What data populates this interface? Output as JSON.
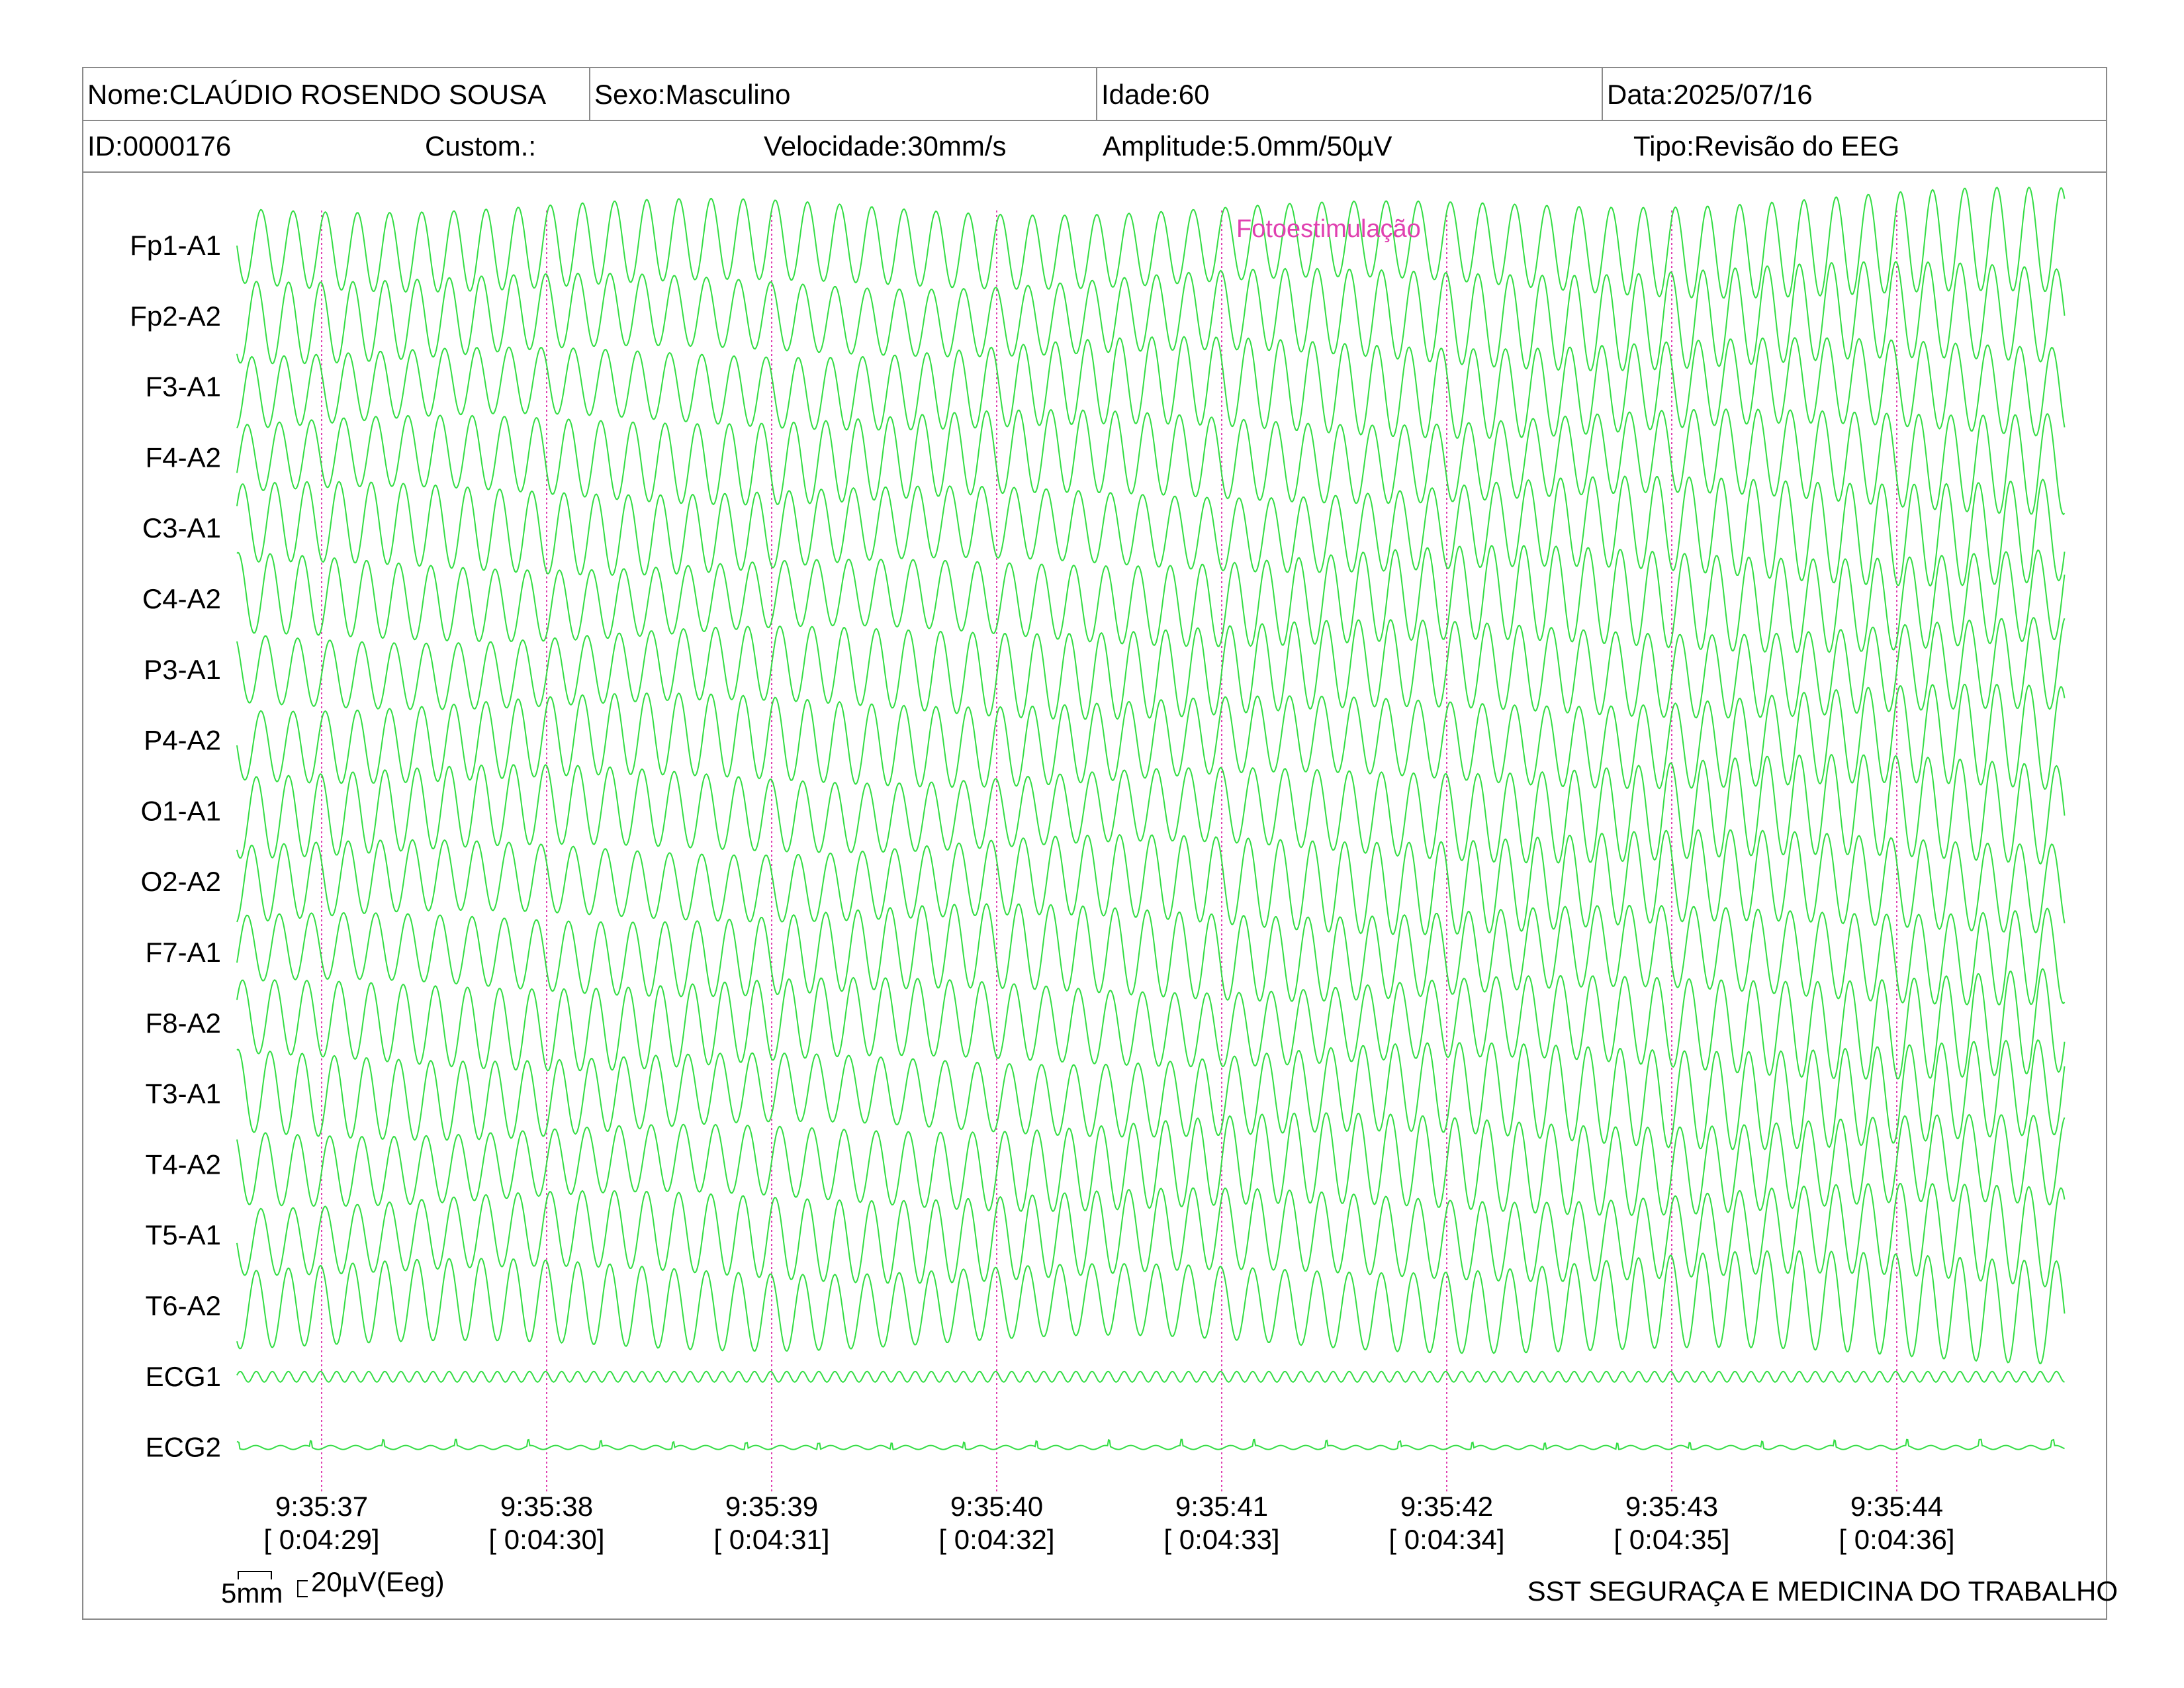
{
  "header": {
    "name": "Nome:CLAÚDIO ROSENDO SOUSA",
    "sex": "Sexo:Masculino",
    "age": "Idade:60",
    "date": "Data:2025/07/16",
    "id": "ID:0000176",
    "custom": "Custom.:",
    "speed": "Velocidade:30mm/s",
    "amplitude": "Amplitude:5.0mm/50µV",
    "type": "Tipo:Revisão do EEG"
  },
  "calibration": {
    "time_label": "5mm",
    "amp_label": "20µV(Eeg)"
  },
  "footer": "SST SEGURAÇA E MEDICINA DO TRABALHO",
  "colors": {
    "trace": "#33dd44",
    "marker": "#e040b0",
    "border": "#8a8a8a"
  },
  "chart_data": {
    "type": "line",
    "title": "",
    "annotation": {
      "text": "Fotoestimulação",
      "time": "9:35:41"
    },
    "x_ticks": [
      {
        "time": "9:35:37",
        "elapsed": "[ 0:04:29]"
      },
      {
        "time": "9:35:38",
        "elapsed": "[ 0:04:30]"
      },
      {
        "time": "9:35:39",
        "elapsed": "[ 0:04:31]"
      },
      {
        "time": "9:35:40",
        "elapsed": "[ 0:04:32]"
      },
      {
        "time": "9:35:41",
        "elapsed": "[ 0:04:33]"
      },
      {
        "time": "9:35:42",
        "elapsed": "[ 0:04:34]"
      },
      {
        "time": "9:35:43",
        "elapsed": "[ 0:04:35]"
      },
      {
        "time": "9:35:44",
        "elapsed": "[ 0:04:36]"
      }
    ],
    "channels": [
      "Fp1-A1",
      "Fp2-A2",
      "F3-A1",
      "F4-A2",
      "C3-A1",
      "C4-A2",
      "P3-A1",
      "P4-A2",
      "O1-A1",
      "O2-A2",
      "F7-A1",
      "F8-A2",
      "T3-A1",
      "T4-A2",
      "T5-A1",
      "T6-A2",
      "ECG1",
      "ECG2"
    ],
    "eeg_oscillation_hz": 7,
    "ecg1_oscillation_hz": 14,
    "grid": false
  }
}
